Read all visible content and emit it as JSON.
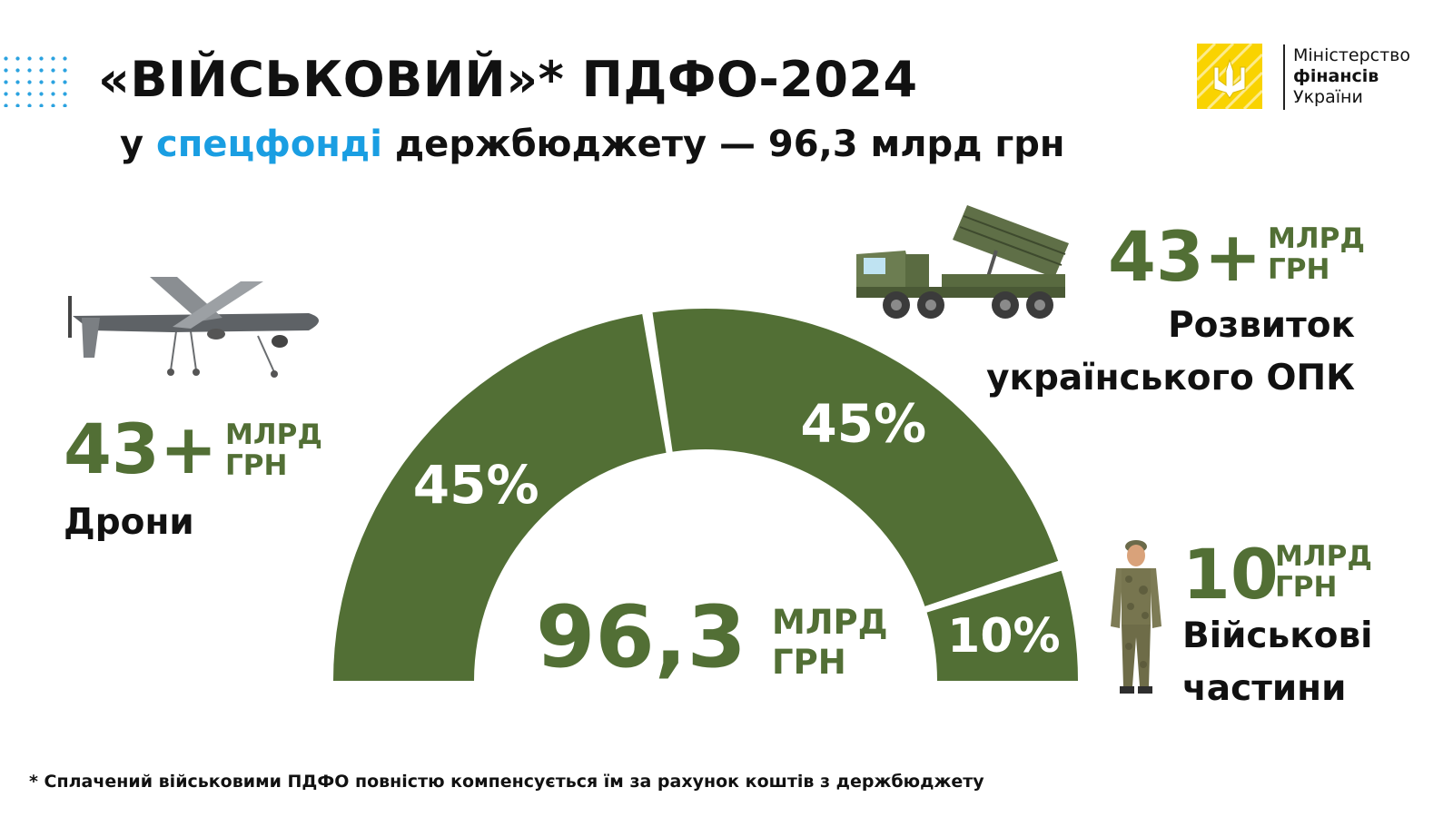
{
  "header": {
    "title": "«ВІЙСЬКОВИЙ»* ПДФО-2024",
    "subtitle_pre": "у ",
    "subtitle_highlight": "спецфонді",
    "subtitle_post": " держбюджету — 96,3 млрд грн"
  },
  "logo": {
    "line1": "Міністерство",
    "line2": "фінансів",
    "line3": "України"
  },
  "chart_data": {
    "type": "pie",
    "style": "semi-donut",
    "total": {
      "value": "96,3",
      "unit_line1": "МЛРД",
      "unit_line2": "ГРН"
    },
    "slices": [
      {
        "label": "45%",
        "value": 45,
        "name": "Дрони",
        "amount": "43+"
      },
      {
        "label": "45%",
        "value": 45,
        "name_line1": "Розвиток",
        "name_line2": "українського ОПК",
        "amount": "43+"
      },
      {
        "label": "10%",
        "value": 10,
        "name_line1": "Військові",
        "name_line2": "частини",
        "amount": "10"
      }
    ],
    "unit_line1": "МЛРД",
    "unit_line2": "ГРН"
  },
  "colors": {
    "green": "#526f35",
    "accent_blue": "#1a9ee2",
    "logo_yellow": "#f9d300"
  },
  "icons": [
    "drone-icon",
    "rocket-launcher-truck-icon",
    "soldier-icon",
    "trident-logo-icon"
  ],
  "footnote": "* Сплачений військовими ПДФО повністю компенсується їм за рахунок коштів з держбюджету"
}
